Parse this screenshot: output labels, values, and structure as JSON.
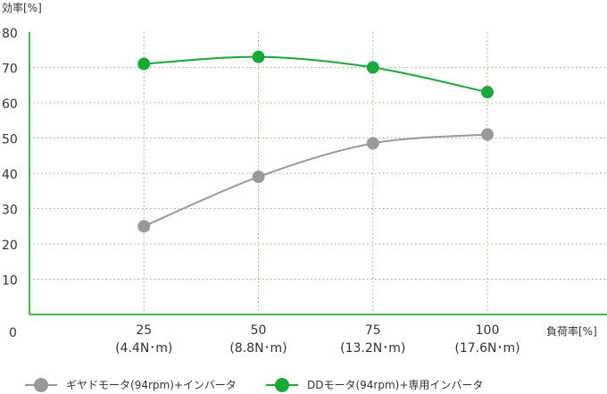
{
  "chart_data": {
    "type": "line",
    "ylabel": "効率[%]",
    "xlabel": "負荷率[%]",
    "origin_label": "0",
    "ylim": [
      0,
      80
    ],
    "yticks": [
      10,
      20,
      30,
      40,
      50,
      60,
      70,
      80
    ],
    "x": [
      25,
      50,
      75,
      100
    ],
    "xlim": [
      0,
      125
    ],
    "categories": [
      {
        "value": "25",
        "sub": "(4.4N･m)"
      },
      {
        "value": "50",
        "sub": "(8.8N･m)"
      },
      {
        "value": "75",
        "sub": "(13.2N･m)"
      },
      {
        "value": "100",
        "sub": "(17.6N･m)"
      }
    ],
    "grid": true,
    "legend_position": "bottom",
    "series": [
      {
        "name": "ギヤドモータ(94rpm)+インバータ",
        "color": "#999999",
        "values": [
          25,
          39,
          48.5,
          51
        ]
      },
      {
        "name": "DDモータ(94rpm)+専用インバータ",
        "color": "#1aa83a",
        "values": [
          71,
          73,
          70,
          63
        ]
      }
    ],
    "axis_color": "#49b54a",
    "grid_color": "#7cc46a"
  }
}
